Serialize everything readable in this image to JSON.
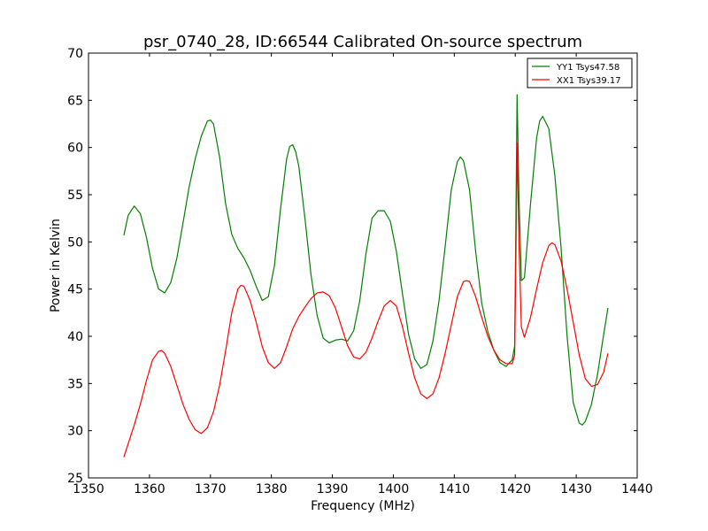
{
  "chart_data": {
    "type": "line",
    "title": "psr_0740_28, ID:66544 Calibrated On-source spectrum",
    "xlabel": "Frequency (MHz)",
    "ylabel": "Power in Kelvin",
    "xlim": [
      1350,
      1440
    ],
    "ylim": [
      25,
      70
    ],
    "xticks": [
      1350,
      1360,
      1370,
      1380,
      1390,
      1400,
      1410,
      1420,
      1430,
      1440
    ],
    "yticks": [
      25,
      30,
      35,
      40,
      45,
      50,
      55,
      60,
      65,
      70
    ],
    "grid": false,
    "legend_position": "top-right",
    "series": [
      {
        "name": "YY1 Tsys47.58",
        "color": "#008000",
        "x": [
          1355.8,
          1356.5,
          1357.5,
          1358.5,
          1359.5,
          1360.5,
          1361.5,
          1362.5,
          1363.5,
          1364.5,
          1365.5,
          1366.5,
          1367.5,
          1368.5,
          1369.5,
          1370.0,
          1370.5,
          1371.5,
          1372.5,
          1373.5,
          1374.5,
          1375.5,
          1376.5,
          1377.5,
          1378.5,
          1379.5,
          1380.5,
          1381.5,
          1382.5,
          1383.0,
          1383.5,
          1384.0,
          1384.5,
          1385.5,
          1386.5,
          1387.5,
          1388.5,
          1389.5,
          1390.5,
          1391.5,
          1392.5,
          1393.5,
          1394.5,
          1395.5,
          1396.5,
          1397.5,
          1398.5,
          1399.5,
          1400.5,
          1401.5,
          1402.5,
          1403.5,
          1404.5,
          1405.5,
          1406.5,
          1407.5,
          1408.5,
          1409.5,
          1410.5,
          1411.0,
          1411.5,
          1412.5,
          1413.5,
          1414.5,
          1415.5,
          1416.5,
          1417.5,
          1418.5,
          1419.5,
          1419.9,
          1420.1,
          1420.3,
          1420.6,
          1421.0,
          1421.5,
          1422.5,
          1423.5,
          1424.0,
          1424.5,
          1425.5,
          1426.5,
          1427.5,
          1428.5,
          1429.5,
          1430.5,
          1431.0,
          1431.5,
          1432.5,
          1433.5,
          1434.5,
          1435.2
        ],
        "y": [
          50.7,
          52.8,
          53.8,
          53.0,
          50.5,
          47.2,
          45.0,
          44.6,
          45.7,
          48.3,
          52.0,
          55.8,
          58.8,
          61.2,
          62.8,
          62.9,
          62.5,
          59.0,
          54.0,
          50.8,
          49.3,
          48.3,
          47.0,
          45.3,
          43.8,
          44.2,
          47.5,
          53.5,
          58.8,
          60.1,
          60.3,
          59.5,
          58.0,
          52.5,
          46.5,
          42.2,
          39.8,
          39.3,
          39.6,
          39.7,
          39.5,
          40.6,
          43.8,
          48.7,
          52.5,
          53.3,
          53.3,
          52.2,
          49.0,
          44.5,
          40.2,
          37.6,
          36.6,
          37.0,
          39.5,
          43.8,
          49.5,
          55.5,
          58.5,
          59.0,
          58.6,
          55.5,
          49.0,
          43.5,
          40.5,
          38.5,
          37.2,
          36.8,
          37.5,
          39.0,
          52.0,
          65.6,
          55.0,
          45.9,
          46.2,
          54.0,
          61.0,
          62.8,
          63.3,
          62.0,
          57.0,
          49.5,
          40.0,
          33.0,
          30.8,
          30.6,
          31.0,
          32.8,
          36.0,
          40.2,
          43.0
        ]
      },
      {
        "name": "XX1 Tsys39.17",
        "color": "#ff0000",
        "x": [
          1355.8,
          1356.5,
          1357.5,
          1358.5,
          1359.5,
          1360.5,
          1361.5,
          1362.0,
          1362.5,
          1363.5,
          1364.5,
          1365.5,
          1366.5,
          1367.5,
          1368.5,
          1369.5,
          1370.5,
          1371.5,
          1372.5,
          1373.5,
          1374.5,
          1375.0,
          1375.5,
          1376.5,
          1377.5,
          1378.5,
          1379.5,
          1380.5,
          1381.5,
          1382.5,
          1383.5,
          1384.5,
          1385.5,
          1386.5,
          1387.5,
          1388.5,
          1389.5,
          1390.5,
          1391.5,
          1392.5,
          1393.5,
          1394.5,
          1395.5,
          1396.5,
          1397.5,
          1398.5,
          1399.5,
          1400.5,
          1401.5,
          1402.5,
          1403.5,
          1404.5,
          1405.5,
          1406.5,
          1407.5,
          1408.5,
          1409.5,
          1410.5,
          1411.5,
          1412.0,
          1412.5,
          1413.5,
          1414.5,
          1415.5,
          1416.5,
          1417.5,
          1418.5,
          1419.5,
          1419.9,
          1420.1,
          1420.3,
          1420.6,
          1421.0,
          1421.5,
          1422.5,
          1423.5,
          1424.5,
          1425.5,
          1426.0,
          1426.5,
          1427.5,
          1428.5,
          1429.5,
          1430.5,
          1431.5,
          1432.5,
          1433.5,
          1434.5,
          1435.2
        ],
        "y": [
          27.2,
          28.6,
          30.6,
          32.8,
          35.3,
          37.5,
          38.4,
          38.5,
          38.2,
          36.8,
          34.8,
          32.8,
          31.2,
          30.1,
          29.7,
          30.3,
          32.0,
          34.8,
          38.5,
          42.5,
          45.0,
          45.4,
          45.3,
          43.8,
          41.5,
          38.9,
          37.2,
          36.6,
          37.2,
          38.9,
          40.8,
          42.1,
          43.1,
          44.0,
          44.6,
          44.7,
          44.3,
          43.0,
          41.0,
          39.0,
          37.8,
          37.6,
          38.3,
          39.8,
          41.6,
          43.2,
          43.8,
          43.2,
          41.0,
          38.2,
          35.6,
          33.9,
          33.4,
          33.9,
          35.6,
          38.2,
          41.2,
          44.2,
          45.8,
          45.9,
          45.8,
          44.2,
          42.0,
          40.0,
          38.5,
          37.5,
          37.1,
          37.1,
          38.0,
          48.0,
          60.5,
          50.0,
          41.0,
          39.9,
          42.0,
          45.0,
          47.8,
          49.6,
          49.9,
          49.7,
          48.0,
          45.0,
          41.5,
          38.0,
          35.5,
          34.7,
          34.9,
          36.2,
          38.2
        ]
      }
    ]
  }
}
